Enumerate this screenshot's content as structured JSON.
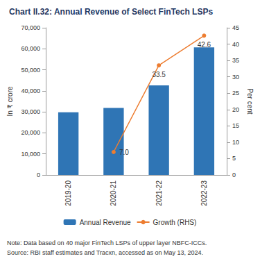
{
  "chart_data": {
    "type": "bar",
    "title": "Chart II.32: Annual Revenue of Select FinTech LSPs",
    "categories": [
      "2019-20",
      "2020-21",
      "2021-22",
      "2022-23"
    ],
    "series": [
      {
        "name": "Annual Revenue",
        "type": "bar",
        "color": "#2f75b5",
        "values": [
          29800,
          31900,
          42600,
          60700
        ]
      },
      {
        "name": "Growth (RHS)",
        "type": "line",
        "axis": "y2",
        "color": "#ed7d31",
        "marker": "circle",
        "line_style": "solid",
        "values": [
          null,
          7.0,
          33.5,
          42.6
        ],
        "value_labels": [
          null,
          "7.0",
          "33.5",
          "42.6"
        ],
        "data_labels": true
      }
    ],
    "y_label": "In ₹ crore",
    "y2_label": "Per cent",
    "ylim": [
      0,
      70000
    ],
    "yticks": [
      0,
      {
        "value": 10000,
        "label": "10,000"
      },
      {
        "value": 20000,
        "label": "20,000"
      },
      {
        "value": 30000,
        "label": "30,000"
      },
      {
        "value": 40000,
        "label": "40,000"
      },
      {
        "value": 50000,
        "label": "50,000"
      },
      {
        "value": 60000,
        "label": "60,000"
      },
      {
        "value": 70000,
        "label": "70,000"
      }
    ],
    "y2lim": [
      0,
      45
    ],
    "y2ticks": [
      0,
      5,
      10,
      15,
      20,
      25,
      30,
      35,
      40,
      45
    ],
    "grid": false,
    "legend": "bottom",
    "note": "Note: Data based on 40 major FinTech LSPs of upper layer NBFC-ICCs.",
    "source": "Source: RBI staff estimates and Tracxn, accessed as on May 13, 2024."
  }
}
